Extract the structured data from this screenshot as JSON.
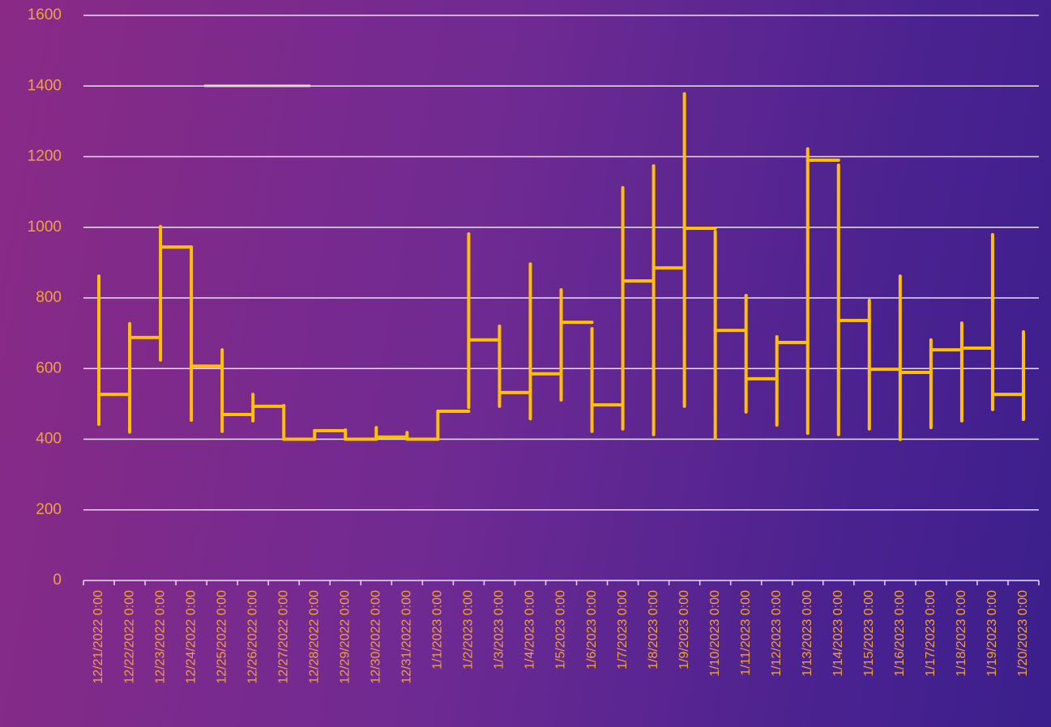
{
  "chart_data": {
    "type": "line",
    "categories": [
      "12/21/2022 0:00",
      "12/22/2022 0:00",
      "12/23/2022 0:00",
      "12/24/2022 0:00",
      "12/25/2022 0:00",
      "12/26/2022 0:00",
      "12/27/2022 0:00",
      "12/28/2022 0:00",
      "12/29/2022 0:00",
      "12/30/2022 0:00",
      "12/31/2022 0:00",
      "1/1/2023 0:00",
      "1/2/2023 0:00",
      "1/3/2023 0:00",
      "1/4/2023 0:00",
      "1/5/2023 0:00",
      "1/6/2023 0:00",
      "1/7/2023 0:00",
      "1/8/2023 0:00",
      "1/9/2023 0:00",
      "1/10/2023 0:00",
      "1/11/2023 0:00",
      "1/12/2023 0:00",
      "1/13/2023 0:00",
      "1/14/2023 0:00",
      "1/15/2023 0:00",
      "1/16/2023 0:00",
      "1/17/2023 0:00",
      "1/18/2023 0:00",
      "1/19/2023 0:00",
      "1/20/2023 0:00"
    ],
    "series": [
      {
        "color": "#ffc000",
        "values": [
          527,
          688,
          944,
          607,
          470,
          493,
          400,
          424,
          400,
          406,
          400,
          479,
          681,
          532,
          585,
          731,
          497,
          848,
          885,
          997,
          708,
          571,
          674,
          1190,
          736,
          598,
          589,
          653,
          658,
          527,
          null
        ],
        "high": [
          862,
          727,
          1002,
          942,
          653,
          527,
          495,
          424,
          426,
          433,
          419,
          479,
          981,
          720,
          896,
          823,
          713,
          1112,
          1174,
          1378,
          988,
          807,
          690,
          1222,
          1176,
          793,
          862,
          681,
          729,
          979,
          704
        ],
        "low": [
          442,
          420,
          624,
          454,
          422,
          452,
          400,
          400,
          400,
          400,
          400,
          400,
          490,
          493,
          458,
          511,
          422,
          429,
          413,
          493,
          403,
          477,
          440,
          417,
          413,
          429,
          399,
          433,
          452,
          484,
          456
        ]
      }
    ],
    "ylim": [
      0,
      1600
    ],
    "yticks": [
      0,
      200,
      400,
      600,
      800,
      1000,
      1200,
      1400,
      1600
    ],
    "grid": true
  }
}
